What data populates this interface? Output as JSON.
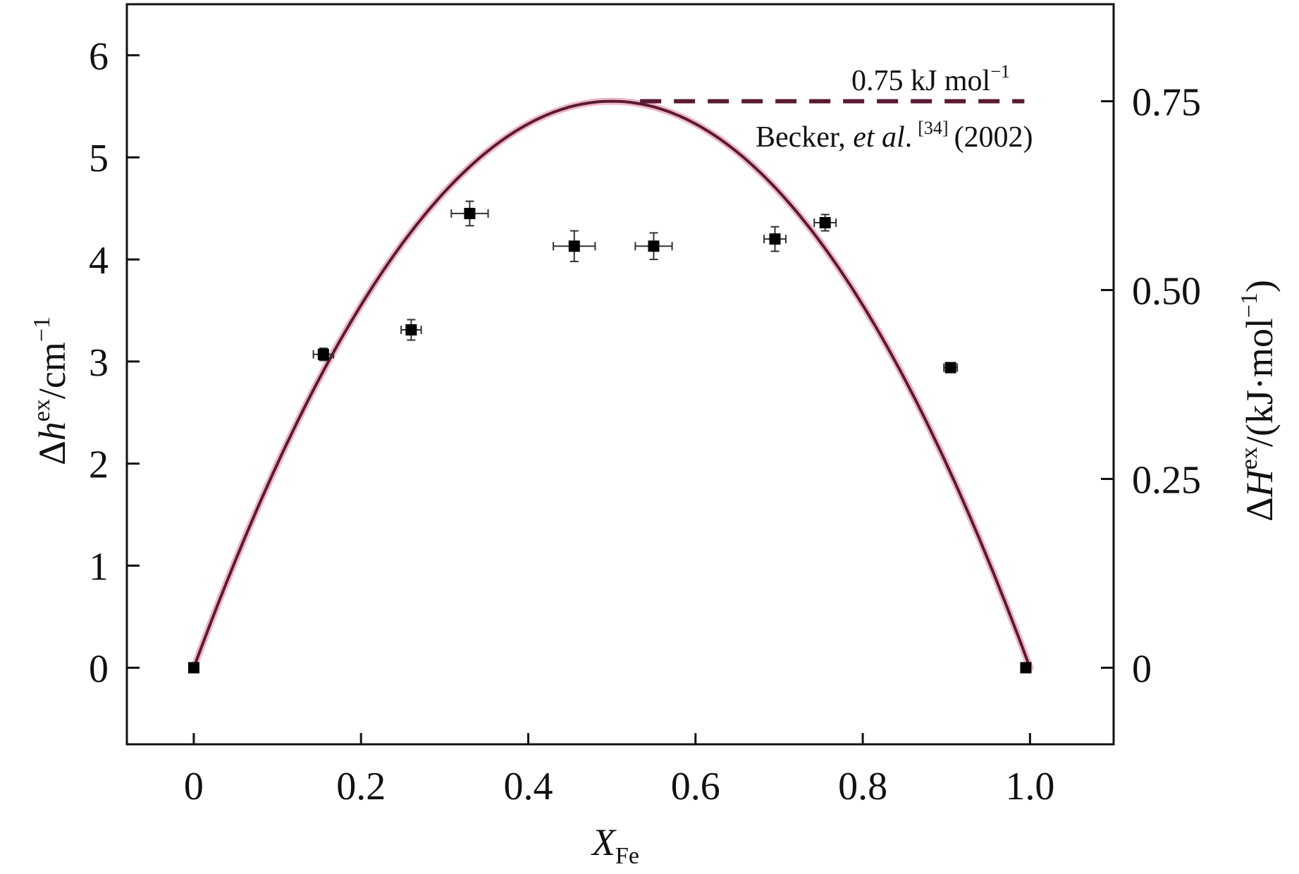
{
  "chart_data": {
    "type": "scatter",
    "x": [
      0,
      0.155,
      0.26,
      0.33,
      0.455,
      0.55,
      0.695,
      0.755,
      0.905,
      0.995
    ],
    "y": [
      0,
      3.07,
      3.31,
      4.45,
      4.13,
      4.13,
      4.2,
      4.36,
      2.94,
      0
    ],
    "x_err": [
      0,
      0.012,
      0.012,
      0.022,
      0.025,
      0.022,
      0.013,
      0.013,
      0.008,
      0
    ],
    "y_err": [
      0,
      0.06,
      0.1,
      0.12,
      0.15,
      0.13,
      0.12,
      0.08,
      0.04,
      0
    ],
    "fit_curve": {
      "type": "parabola",
      "y_formula": "22.2 * x * (1 - x)",
      "peak": {
        "x": 0.5,
        "y": 5.55
      },
      "color": "#5a1a33",
      "glow_color": "#e8a6b8"
    },
    "reference_line": {
      "y": 5.55,
      "x_range": [
        0.5,
        1.0
      ],
      "style": "dashed",
      "color": "#5a1a33",
      "label": "0.75 kJ mol",
      "label_sup": "−1"
    },
    "reference": {
      "author": "Becker, ",
      "etal": "et al",
      "dot": ".",
      "cite": "[34]",
      "year": "(2002)"
    },
    "xlim": [
      -0.08,
      1.1
    ],
    "ylim": [
      -0.75,
      6.5
    ],
    "x_ticks": [
      0,
      0.2,
      0.4,
      0.6,
      0.8,
      1.0
    ],
    "x_tick_labels": [
      "0",
      "0.2",
      "0.4",
      "0.6",
      "0.8",
      "1.0"
    ],
    "y_ticks": [
      0,
      1,
      2,
      3,
      4,
      5,
      6
    ],
    "y_tick_labels": [
      "0",
      "1",
      "2",
      "3",
      "4",
      "5",
      "6"
    ],
    "y2_ticks_left_value": [
      0,
      1.85,
      3.7,
      5.55
    ],
    "y2_tick_labels": [
      "0",
      "0.25",
      "0.50",
      "0.75"
    ],
    "xlabel": {
      "main": "X",
      "sub": "Fe"
    },
    "ylabel": {
      "prefix": "Δ",
      "main": "h",
      "sup": "ex",
      "suffix": "/cm",
      "sup2": "−1"
    },
    "y2label": {
      "prefix": "Δ",
      "main": "H",
      "sup": "ex",
      "suffix": "/(kJ·mol",
      "sup2": "−1",
      "close": ")"
    },
    "marker_color": "#000000",
    "grid": false
  }
}
